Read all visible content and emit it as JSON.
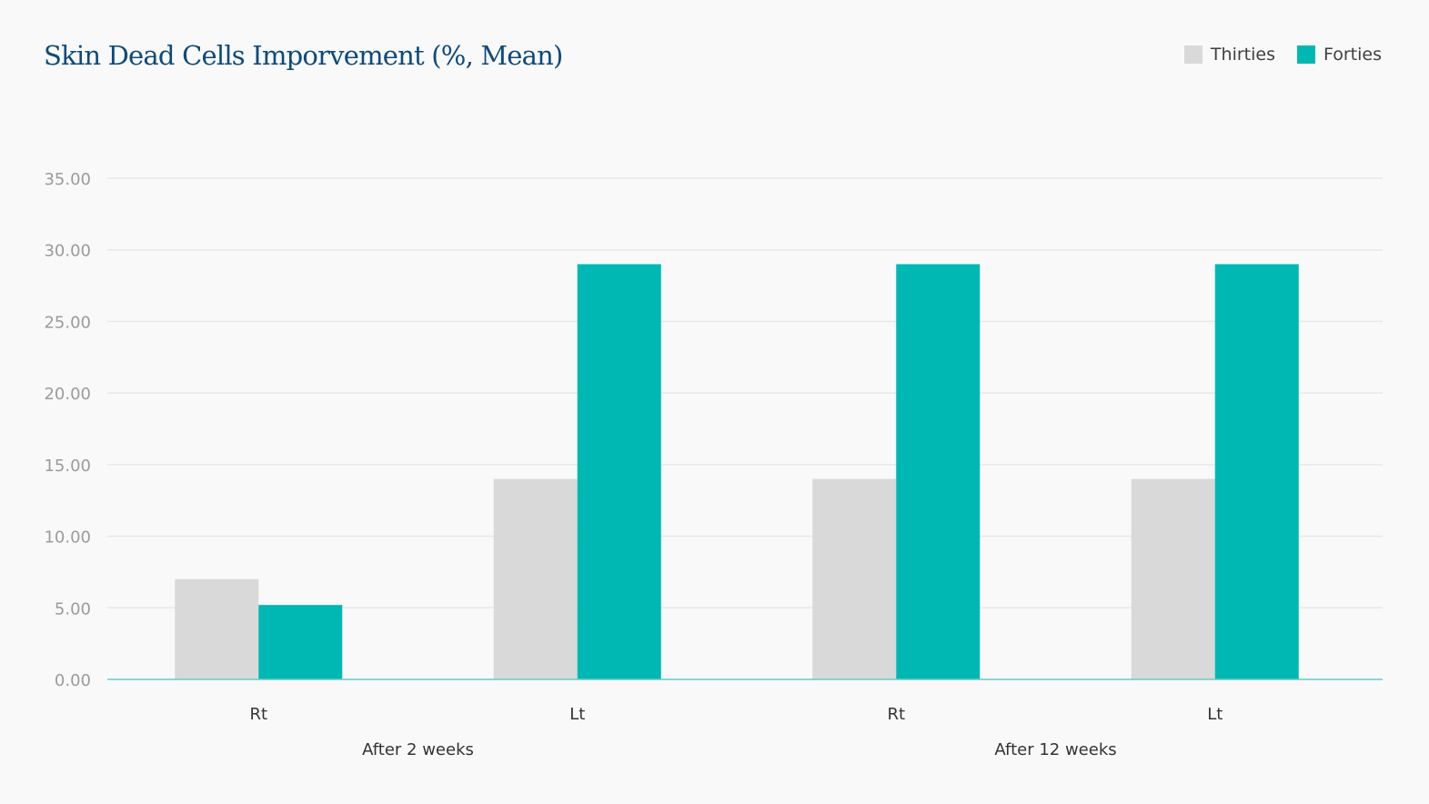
{
  "chart_data": {
    "type": "bar",
    "title": "Skin Dead Cells Imporvement (%, Mean)",
    "categories": [
      "Rt",
      "Lt",
      "Rt",
      "Lt"
    ],
    "groups": [
      {
        "label": "After 2 weeks",
        "categories": [
          "Rt",
          "Lt"
        ]
      },
      {
        "label": "After 12 weeks",
        "categories": [
          "Rt",
          "Lt"
        ]
      }
    ],
    "series": [
      {
        "name": "Thirties",
        "color": "#d9d9d9",
        "values": [
          7.0,
          14.0,
          14.0,
          14.0
        ]
      },
      {
        "name": "Forties",
        "color": "#00b8b3",
        "values": [
          5.2,
          29.0,
          29.0,
          29.0
        ]
      }
    ],
    "y_ticks": [
      "0.00",
      "5.00",
      "10.00",
      "15.00",
      "20.00",
      "25.00",
      "30.00",
      "35.00"
    ],
    "ylim": [
      0,
      35
    ],
    "xlabel": "",
    "ylabel": "",
    "grid": true,
    "legend": "top-right",
    "axis_color": "#5ccfcb",
    "grid_color": "#e8e8e8"
  }
}
